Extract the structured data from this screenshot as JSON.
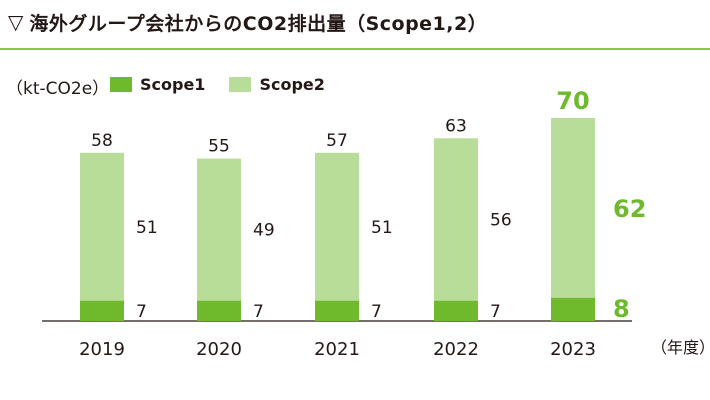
{
  "title": {
    "icon": "triangle-down-outline-icon",
    "text": "海外グループ会社からのCO2排出量（Scope1,2）"
  },
  "colors": {
    "accent": "#8cc63f",
    "scope1": "#6fba2c",
    "scope2": "#b8dd98",
    "highlight": "#6fba2c",
    "text": "#231815"
  },
  "chart_data": {
    "type": "bar",
    "stacked": true,
    "unit_label": "（kt-CO2e）",
    "x_unit_label": "（年度）",
    "categories": [
      "2019",
      "2020",
      "2021",
      "2022",
      "2023"
    ],
    "series": [
      {
        "name": "Scope1",
        "values": [
          7,
          7,
          7,
          7,
          8
        ]
      },
      {
        "name": "Scope2",
        "values": [
          51,
          49,
          51,
          56,
          62
        ]
      }
    ],
    "totals": [
      58,
      55,
      57,
      63,
      70
    ],
    "highlight_category": "2023",
    "legend_position": "top-left",
    "grid": false
  }
}
